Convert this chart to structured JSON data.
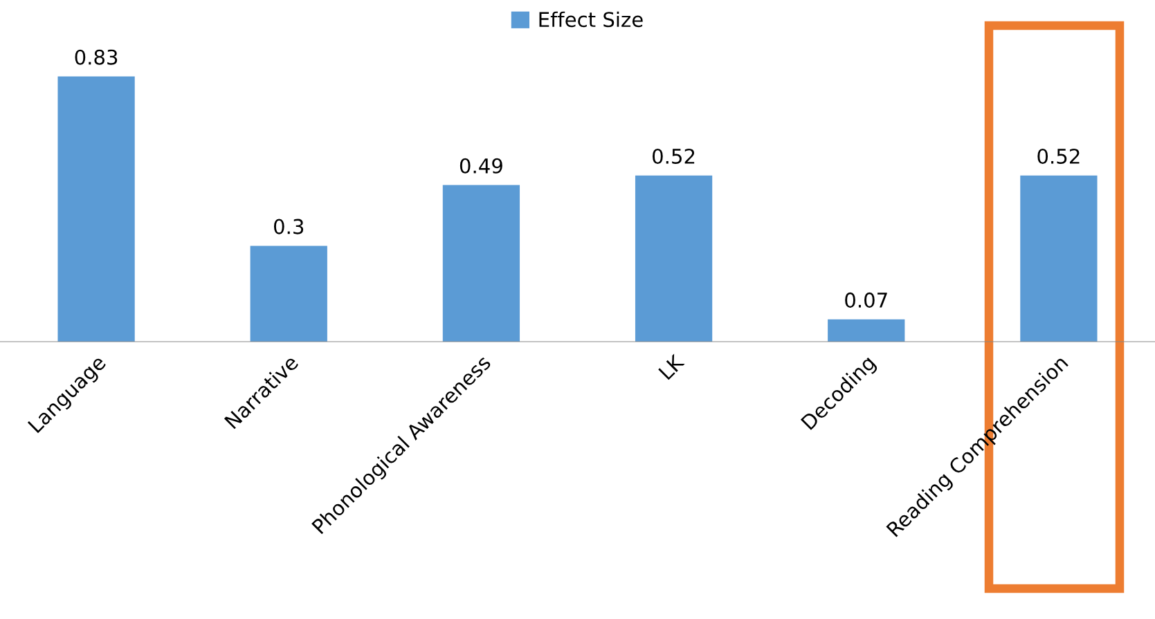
{
  "chart_data": {
    "type": "bar",
    "categories": [
      "Language",
      "Narrative",
      "Phonological Awareness",
      "LK",
      "Decoding",
      "Reading Comprehension"
    ],
    "series": [
      {
        "name": "Effect Size",
        "color": "#5b9bd5",
        "values": [
          0.83,
          0.3,
          0.49,
          0.52,
          0.07,
          0.52
        ]
      }
    ],
    "tick_labels": "x",
    "data_labels": true,
    "legend": "top",
    "grid": false
  }
}
